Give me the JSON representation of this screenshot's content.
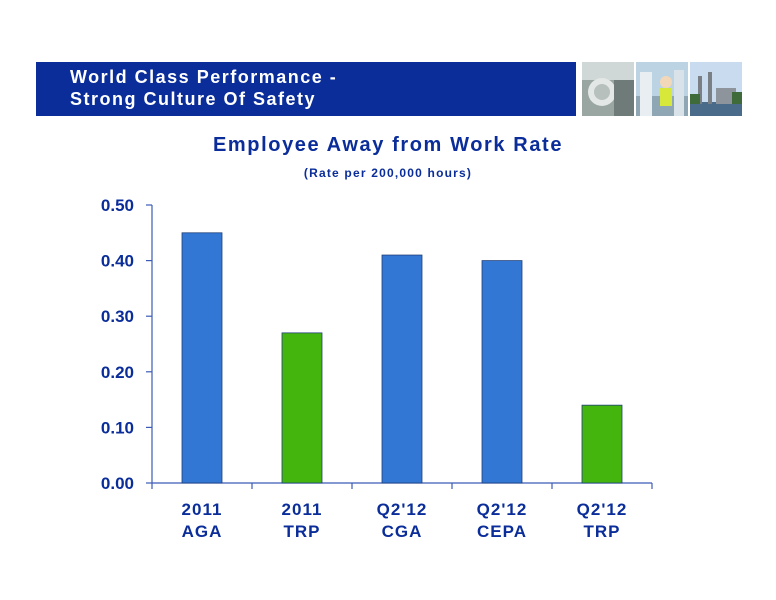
{
  "header": {
    "title_line1": "World Class Performance -",
    "title_line2": "Strong Culture Of Safety"
  },
  "colors": {
    "header_blue": "#0a2d9a",
    "bar_blue": "#3377d4",
    "bar_green": "#44b50d"
  },
  "chart_data": {
    "type": "bar",
    "title": "Employee Away from Work Rate",
    "subtitle": "(Rate per 200,000 hours)",
    "categories": [
      [
        "2011",
        "AGA"
      ],
      [
        "2011",
        "TRP"
      ],
      [
        "Q2'12",
        "CGA"
      ],
      [
        "Q2'12",
        "CEPA"
      ],
      [
        "Q2'12",
        "TRP"
      ]
    ],
    "values": [
      0.45,
      0.27,
      0.41,
      0.4,
      0.14
    ],
    "bar_colors": [
      "blue",
      "green",
      "blue",
      "blue",
      "green"
    ],
    "y_ticks": [
      "0.00",
      "0.10",
      "0.20",
      "0.30",
      "0.40",
      "0.50"
    ],
    "ylim": [
      0,
      0.5
    ],
    "grid": false,
    "legend": "none"
  }
}
